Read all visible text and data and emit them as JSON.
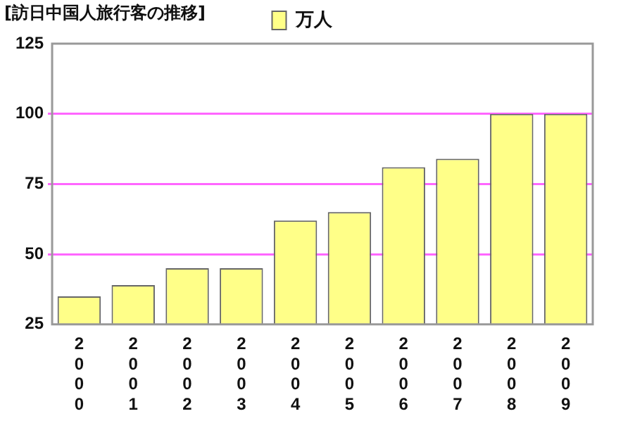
{
  "chart_data": {
    "type": "bar",
    "title": "[訪日中国人旅行客の推移]",
    "categories": [
      "2000",
      "2001",
      "2002",
      "2003",
      "2004",
      "2005",
      "2006",
      "2007",
      "2008",
      "2009"
    ],
    "series": [
      {
        "name": "万人",
        "color": "#ffff88",
        "values": [
          35,
          39,
          45,
          45,
          62,
          65,
          81,
          84,
          100,
          100
        ]
      }
    ],
    "ylim": [
      25,
      125
    ],
    "yticks": [
      25,
      50,
      75,
      100,
      125
    ],
    "grid": "y",
    "legend": "top"
  }
}
